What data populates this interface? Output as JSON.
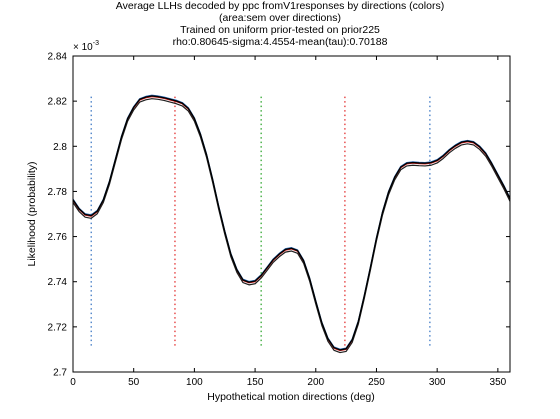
{
  "chart_data": {
    "type": "line",
    "title_lines": [
      "Average LLHs decoded by ppc fromV1responses by directions (colors)",
      "(area:sem over directions)",
      "Trained on uniform prior-tested on prior225",
      "rho:0.80645-sigma:4.4554-mean(tau):0.70188"
    ],
    "xlabel": "Hypothetical motion directions (deg)",
    "ylabel": "Likelihood (probability)",
    "y_multiplier": "× 10",
    "y_multiplier_exponent": "-3",
    "xlim": [
      0,
      360
    ],
    "ylim": [
      2.7,
      2.84
    ],
    "x_ticks": [
      0,
      50,
      100,
      150,
      200,
      250,
      300,
      350
    ],
    "y_ticks": [
      2.7,
      2.72,
      2.74,
      2.76,
      2.78,
      2.8,
      2.82,
      2.84
    ],
    "y_tick_labels": [
      "2.7",
      "2.72",
      "2.74",
      "2.76",
      "2.78",
      "2.8",
      "2.82",
      "2.84"
    ],
    "grid": false,
    "curve_colors": [
      "#e02020",
      "#2f6fc0",
      "#202020",
      "#000000"
    ],
    "curve_offsets": [
      0.0,
      0.0006,
      -0.0009,
      0.0003
    ],
    "curve_x": [
      0,
      5,
      10,
      15,
      20,
      25,
      30,
      35,
      40,
      45,
      50,
      55,
      60,
      65,
      70,
      75,
      80,
      85,
      90,
      95,
      100,
      105,
      110,
      115,
      120,
      125,
      130,
      135,
      140,
      145,
      150,
      155,
      160,
      165,
      170,
      175,
      180,
      185,
      190,
      195,
      200,
      205,
      210,
      215,
      220,
      225,
      230,
      235,
      240,
      245,
      250,
      255,
      260,
      265,
      270,
      275,
      280,
      285,
      290,
      295,
      300,
      305,
      310,
      315,
      320,
      325,
      330,
      335,
      340,
      345,
      350,
      355,
      360
    ],
    "curve_y": [
      2.776,
      2.772,
      2.7695,
      2.769,
      2.771,
      2.776,
      2.784,
      2.794,
      2.804,
      2.812,
      2.817,
      2.8205,
      2.8215,
      2.822,
      2.8217,
      2.8212,
      2.8205,
      2.8198,
      2.8188,
      2.8165,
      2.812,
      2.805,
      2.796,
      2.785,
      2.773,
      2.762,
      2.752,
      2.745,
      2.7405,
      2.7395,
      2.74,
      2.7425,
      2.746,
      2.7495,
      2.752,
      2.754,
      2.7545,
      2.7535,
      2.749,
      2.741,
      2.731,
      2.7215,
      2.7145,
      2.7105,
      2.7095,
      2.71,
      2.714,
      2.722,
      2.7335,
      2.746,
      2.759,
      2.7705,
      2.7795,
      2.786,
      2.7905,
      2.7922,
      2.7925,
      2.7923,
      2.7922,
      2.7925,
      2.7935,
      2.7955,
      2.798,
      2.8,
      2.8015,
      2.802,
      2.8015,
      2.7995,
      2.7965,
      2.792,
      2.787,
      2.782,
      2.7765
    ],
    "markers": [
      {
        "x": 15,
        "color": "#2f6fc0"
      },
      {
        "x": 84,
        "color": "#e02020"
      },
      {
        "x": 155,
        "color": "#20a020"
      },
      {
        "x": 224,
        "color": "#e02020"
      },
      {
        "x": 294,
        "color": "#2f6fc0"
      }
    ],
    "marker_top": 2.822,
    "marker_bottom": 2.711
  }
}
